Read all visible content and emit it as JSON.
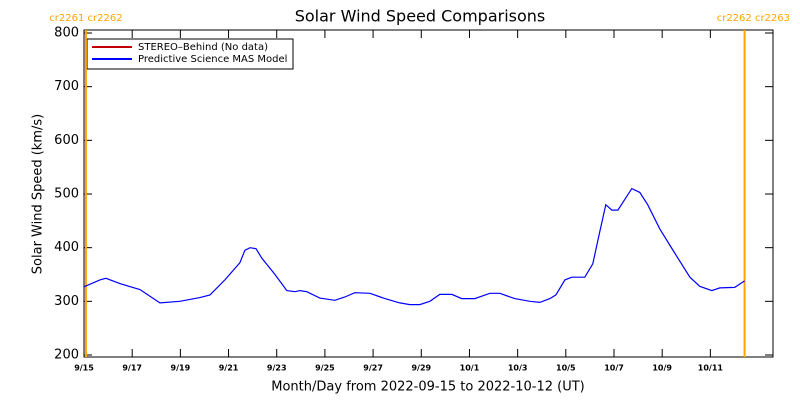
{
  "chart_data": {
    "type": "line",
    "title": "Solar Wind Speed Comparisons",
    "xlabel": "Month/Day from 2022-09-15 to 2022-10-12 (UT)",
    "ylabel": "Solar Wind Speed (km/s)",
    "xlim": [
      0,
      28.6
    ],
    "ylim": [
      200,
      800
    ],
    "yticks": [
      200,
      300,
      400,
      500,
      600,
      700,
      800
    ],
    "xticks": [
      {
        "value": 0,
        "label": "9/15"
      },
      {
        "value": 2,
        "label": "9/17"
      },
      {
        "value": 4,
        "label": "9/19"
      },
      {
        "value": 6,
        "label": "9/21"
      },
      {
        "value": 8,
        "label": "9/23"
      },
      {
        "value": 10,
        "label": "9/25"
      },
      {
        "value": 12,
        "label": "9/27"
      },
      {
        "value": 14,
        "label": "9/29"
      },
      {
        "value": 16,
        "label": "10/1"
      },
      {
        "value": 18,
        "label": "10/3"
      },
      {
        "value": 20,
        "label": "10/5"
      },
      {
        "value": 22,
        "label": "10/7"
      },
      {
        "value": 24,
        "label": "10/9"
      },
      {
        "value": 26,
        "label": "10/11"
      }
    ],
    "markers": [
      {
        "x": 0.08,
        "label": "cr2261 cr2262",
        "color": "#ffa500"
      },
      {
        "x": 27.42,
        "label": "cr2262 cr2263",
        "color": "#ffa500"
      }
    ],
    "series": [
      {
        "name": "STEREO–Behind (No data)",
        "color": "#c00000",
        "x": [],
        "values": []
      },
      {
        "name": "Predictive Science MAS Model",
        "color": "#0000ff",
        "x": [
          0,
          0.66,
          0.91,
          1.49,
          2.32,
          3.15,
          3.98,
          4.81,
          5.23,
          5.85,
          6.47,
          6.68,
          6.89,
          7.14,
          7.39,
          7.93,
          8.42,
          8.76,
          8.96,
          9.25,
          9.79,
          10.41,
          10.83,
          11.24,
          11.87,
          12.49,
          13.11,
          13.53,
          13.94,
          14.36,
          14.77,
          15.27,
          15.68,
          16.22,
          16.85,
          17.26,
          17.88,
          18.51,
          18.92,
          19.34,
          19.59,
          19.96,
          20.25,
          20.79,
          21.12,
          21.41,
          21.66,
          21.91,
          22.16,
          22.45,
          22.74,
          23.07,
          23.4,
          23.9,
          24.52,
          25.15,
          25.56,
          26.06,
          26.39,
          27.01,
          27.42
        ],
        "values": [
          327,
          340,
          343,
          333,
          322,
          297,
          300,
          307,
          312,
          340,
          372,
          395,
          400,
          398,
          380,
          350,
          320,
          318,
          320,
          318,
          306,
          302,
          308,
          316,
          315,
          305,
          297,
          294,
          294,
          300,
          313,
          313,
          305,
          305,
          315,
          315,
          305,
          300,
          298,
          305,
          312,
          340,
          345,
          345,
          370,
          430,
          480,
          470,
          470,
          490,
          510,
          503,
          480,
          435,
          390,
          345,
          328,
          320,
          325,
          326,
          338
        ]
      }
    ]
  }
}
